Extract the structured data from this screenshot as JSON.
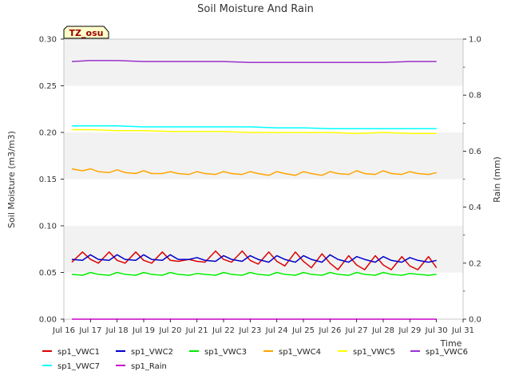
{
  "chart_data": {
    "type": "line",
    "title": "Soil Moisture And Rain",
    "station_label": "TZ_osu",
    "xlabel": "Time",
    "ylabel_left": "Soil Moisture (m3/m3)",
    "ylabel_right": "Rain (mm)",
    "xlim": [
      16,
      31
    ],
    "ylim_left": [
      0.0,
      0.3
    ],
    "ylim_right": [
      0.0,
      1.0
    ],
    "grid": "alternating horizontal bands",
    "x_ticks": [
      16,
      17,
      18,
      19,
      20,
      21,
      22,
      23,
      24,
      25,
      26,
      27,
      28,
      29,
      30,
      31
    ],
    "x_tick_labels": [
      "Jul 16",
      "Jul 17",
      "Jul 18",
      "Jul 19",
      "Jul 20",
      "Jul 21",
      "Jul 22",
      "Jul 23",
      "Jul 24",
      "Jul 25",
      "Jul 26",
      "Jul 27",
      "Jul 28",
      "Jul 29",
      "Jul 30",
      "Jul 31"
    ],
    "y_left_ticks": [
      0.0,
      0.05,
      0.1,
      0.15,
      0.2,
      0.25,
      0.3
    ],
    "y_left_tick_labels": [
      "0.00",
      "0.05",
      "0.10",
      "0.15",
      "0.20",
      "0.25",
      "0.30"
    ],
    "y_right_ticks": [
      0.0,
      0.2,
      0.4,
      0.6,
      0.8,
      1.0
    ],
    "y_right_tick_labels": [
      "0.0",
      "0.2",
      "0.4",
      "0.6",
      "0.8",
      "1.0"
    ],
    "legend_placement": "bottom",
    "series": [
      {
        "name": "sp1_VWC1",
        "color": "#dd0000",
        "axis": "left",
        "x": [
          16.3,
          16.7,
          17.0,
          17.3,
          17.7,
          18.0,
          18.3,
          18.7,
          19.0,
          19.3,
          19.7,
          20.0,
          20.3,
          20.7,
          21.0,
          21.3,
          21.7,
          22.0,
          22.3,
          22.7,
          23.0,
          23.3,
          23.7,
          24.0,
          24.3,
          24.7,
          25.0,
          25.3,
          25.7,
          26.0,
          26.3,
          26.7,
          27.0,
          27.3,
          27.7,
          28.0,
          28.3,
          28.7,
          29.0,
          29.3,
          29.7,
          30.0
        ],
        "values": [
          0.061,
          0.072,
          0.064,
          0.06,
          0.072,
          0.063,
          0.06,
          0.072,
          0.063,
          0.06,
          0.072,
          0.063,
          0.062,
          0.064,
          0.062,
          0.061,
          0.073,
          0.064,
          0.061,
          0.073,
          0.063,
          0.059,
          0.072,
          0.062,
          0.057,
          0.072,
          0.062,
          0.055,
          0.07,
          0.06,
          0.053,
          0.068,
          0.058,
          0.053,
          0.068,
          0.058,
          0.053,
          0.067,
          0.057,
          0.053,
          0.067,
          0.055
        ]
      },
      {
        "name": "sp1_VWC2",
        "color": "#0000cc",
        "axis": "left",
        "x": [
          16.3,
          16.7,
          17.0,
          17.3,
          17.7,
          18.0,
          18.3,
          18.7,
          19.0,
          19.3,
          19.7,
          20.0,
          20.3,
          20.7,
          21.0,
          21.3,
          21.7,
          22.0,
          22.3,
          22.7,
          23.0,
          23.3,
          23.7,
          24.0,
          24.3,
          24.7,
          25.0,
          25.3,
          25.7,
          26.0,
          26.3,
          26.7,
          27.0,
          27.3,
          27.7,
          28.0,
          28.3,
          28.7,
          29.0,
          29.3,
          29.7,
          30.0
        ],
        "values": [
          0.064,
          0.063,
          0.069,
          0.064,
          0.063,
          0.069,
          0.064,
          0.063,
          0.069,
          0.064,
          0.063,
          0.069,
          0.064,
          0.064,
          0.066,
          0.063,
          0.062,
          0.068,
          0.064,
          0.062,
          0.068,
          0.064,
          0.061,
          0.068,
          0.064,
          0.061,
          0.068,
          0.064,
          0.061,
          0.069,
          0.064,
          0.061,
          0.067,
          0.064,
          0.061,
          0.067,
          0.063,
          0.061,
          0.066,
          0.063,
          0.061,
          0.063
        ]
      },
      {
        "name": "sp1_VWC3",
        "color": "#00ee00",
        "axis": "left",
        "x": [
          16.3,
          16.7,
          17.0,
          17.3,
          17.7,
          18.0,
          18.3,
          18.7,
          19.0,
          19.3,
          19.7,
          20.0,
          20.3,
          20.7,
          21.0,
          21.3,
          21.7,
          22.0,
          22.3,
          22.7,
          23.0,
          23.3,
          23.7,
          24.0,
          24.3,
          24.7,
          25.0,
          25.3,
          25.7,
          26.0,
          26.3,
          26.7,
          27.0,
          27.3,
          27.7,
          28.0,
          28.3,
          28.7,
          29.0,
          29.3,
          29.7,
          30.0
        ],
        "values": [
          0.048,
          0.047,
          0.05,
          0.048,
          0.047,
          0.05,
          0.048,
          0.047,
          0.05,
          0.048,
          0.047,
          0.05,
          0.048,
          0.047,
          0.049,
          0.048,
          0.047,
          0.05,
          0.048,
          0.047,
          0.05,
          0.048,
          0.047,
          0.05,
          0.048,
          0.047,
          0.05,
          0.048,
          0.047,
          0.05,
          0.048,
          0.047,
          0.05,
          0.048,
          0.047,
          0.05,
          0.048,
          0.047,
          0.049,
          0.048,
          0.047,
          0.048
        ]
      },
      {
        "name": "sp1_VWC4",
        "color": "#ffa500",
        "axis": "left",
        "x": [
          16.3,
          16.7,
          17.0,
          17.3,
          17.7,
          18.0,
          18.3,
          18.7,
          19.0,
          19.3,
          19.7,
          20.0,
          20.3,
          20.7,
          21.0,
          21.3,
          21.7,
          22.0,
          22.3,
          22.7,
          23.0,
          23.3,
          23.7,
          24.0,
          24.3,
          24.7,
          25.0,
          25.3,
          25.7,
          26.0,
          26.3,
          26.7,
          27.0,
          27.3,
          27.7,
          28.0,
          28.3,
          28.7,
          29.0,
          29.3,
          29.7,
          30.0
        ],
        "values": [
          0.161,
          0.159,
          0.161,
          0.158,
          0.157,
          0.16,
          0.157,
          0.156,
          0.159,
          0.156,
          0.156,
          0.158,
          0.156,
          0.155,
          0.158,
          0.156,
          0.155,
          0.158,
          0.156,
          0.155,
          0.158,
          0.156,
          0.154,
          0.158,
          0.156,
          0.154,
          0.158,
          0.156,
          0.154,
          0.158,
          0.156,
          0.155,
          0.159,
          0.156,
          0.155,
          0.159,
          0.156,
          0.155,
          0.158,
          0.156,
          0.155,
          0.157
        ]
      },
      {
        "name": "sp1_VWC5",
        "color": "#ffff00",
        "axis": "left",
        "x": [
          16.3,
          17.0,
          18.0,
          19.0,
          20.0,
          21.0,
          22.0,
          23.0,
          24.0,
          25.0,
          26.0,
          27.0,
          28.0,
          29.0,
          30.0
        ],
        "values": [
          0.203,
          0.203,
          0.202,
          0.202,
          0.201,
          0.201,
          0.201,
          0.2,
          0.2,
          0.2,
          0.2,
          0.199,
          0.2,
          0.199,
          0.199
        ]
      },
      {
        "name": "sp1_VWC6",
        "color": "#9932cc",
        "axis": "left",
        "x": [
          16.3,
          17.0,
          18.0,
          19.0,
          20.0,
          21.0,
          22.0,
          23.0,
          24.0,
          25.0,
          26.0,
          27.0,
          28.0,
          29.0,
          30.0
        ],
        "values": [
          0.276,
          0.277,
          0.277,
          0.276,
          0.276,
          0.276,
          0.276,
          0.275,
          0.275,
          0.275,
          0.275,
          0.275,
          0.275,
          0.276,
          0.276
        ]
      },
      {
        "name": "sp1_VWC7",
        "color": "#00ffff",
        "axis": "left",
        "x": [
          16.3,
          17.0,
          18.0,
          19.0,
          20.0,
          21.0,
          22.0,
          23.0,
          24.0,
          25.0,
          26.0,
          27.0,
          28.0,
          29.0,
          30.0
        ],
        "values": [
          0.207,
          0.207,
          0.207,
          0.206,
          0.206,
          0.206,
          0.206,
          0.206,
          0.205,
          0.205,
          0.204,
          0.204,
          0.204,
          0.204,
          0.204
        ]
      },
      {
        "name": "sp1_Rain",
        "color": "#cc00cc",
        "axis": "right",
        "x": [
          16.3,
          30.0
        ],
        "values": [
          0.0,
          0.0
        ]
      }
    ]
  }
}
